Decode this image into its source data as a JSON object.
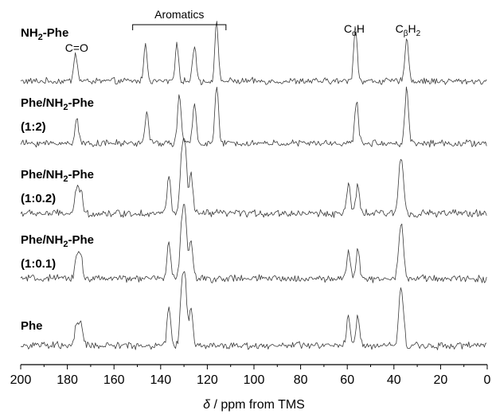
{
  "chart_data": {
    "type": "line",
    "title": "",
    "xlabel": "δ / ppm from TMS",
    "ylabel": "",
    "xlim": [
      200,
      0
    ],
    "x_reversed": true,
    "grid": false,
    "x_ticks": [
      "200",
      "180",
      "160",
      "140",
      "120",
      "100",
      "80",
      "60",
      "40",
      "20",
      "0"
    ],
    "region_label": {
      "text": "Aromatics",
      "from_ppm": 152,
      "to_ppm": 112
    },
    "peak_labels": [
      {
        "text": "C=O",
        "ppm": 176,
        "spectrum": "NH2-Phe"
      },
      {
        "main": "C",
        "sub": "α",
        "tail": "H",
        "ppm": 57,
        "spectrum": "NH2-Phe"
      },
      {
        "main": "C",
        "sub": "β",
        "tail": "H",
        "sub2": "2",
        "ppm": 34,
        "spectrum": "NH2-Phe"
      }
    ],
    "series": [
      {
        "name": "NH2-Phe",
        "label_lines": [
          [
            "NH",
            "2",
            "-Phe"
          ]
        ],
        "peaks": [
          {
            "ppm": 176.5,
            "height": 0.5
          },
          {
            "ppm": 146.5,
            "height": 0.62
          },
          {
            "ppm": 133.0,
            "height": 0.62
          },
          {
            "ppm": 125.5,
            "height": 0.65
          },
          {
            "ppm": 116.0,
            "height": 1.0
          },
          {
            "ppm": 56.5,
            "height": 0.98
          },
          {
            "ppm": 34.5,
            "height": 0.8
          }
        ]
      },
      {
        "name": "Phe/NH2-Phe (1:2)",
        "label_lines": [
          [
            "Phe/NH",
            "2",
            "-Phe"
          ],
          [
            "(1:2)"
          ]
        ],
        "peaks": [
          {
            "ppm": 176.0,
            "height": 0.45
          },
          {
            "ppm": 146.0,
            "height": 0.55
          },
          {
            "ppm": 132.0,
            "height": 0.85
          },
          {
            "ppm": 125.5,
            "height": 0.7
          },
          {
            "ppm": 116.0,
            "height": 1.0
          },
          {
            "ppm": 56.0,
            "height": 0.75
          },
          {
            "ppm": 34.5,
            "height": 1.0
          }
        ]
      },
      {
        "name": "Phe/NH2-Phe (1:0.2)",
        "label_lines": [
          [
            "Phe/NH",
            "2",
            "-Phe"
          ],
          [
            "(1:0.2)"
          ]
        ],
        "peaks": [
          {
            "ppm": 176.0,
            "height": 0.38
          },
          {
            "ppm": 174.2,
            "height": 0.36
          },
          {
            "ppm": 136.5,
            "height": 0.6
          },
          {
            "ppm": 131.0,
            "height": 0.85
          },
          {
            "ppm": 129.5,
            "height": 1.0
          },
          {
            "ppm": 127.0,
            "height": 0.62
          },
          {
            "ppm": 59.5,
            "height": 0.45
          },
          {
            "ppm": 55.5,
            "height": 0.45
          },
          {
            "ppm": 37.5,
            "height": 0.62
          },
          {
            "ppm": 36.3,
            "height": 0.58
          }
        ]
      },
      {
        "name": "Phe/NH2-Phe (1:0.1)",
        "label_lines": [
          [
            "Phe/NH",
            "2",
            "-Phe"
          ],
          [
            "(1:0.1)"
          ]
        ],
        "peaks": [
          {
            "ppm": 176.0,
            "height": 0.4
          },
          {
            "ppm": 174.2,
            "height": 0.37
          },
          {
            "ppm": 136.5,
            "height": 0.62
          },
          {
            "ppm": 131.0,
            "height": 0.85
          },
          {
            "ppm": 129.5,
            "height": 1.0
          },
          {
            "ppm": 127.0,
            "height": 0.62
          },
          {
            "ppm": 59.5,
            "height": 0.45
          },
          {
            "ppm": 55.5,
            "height": 0.45
          },
          {
            "ppm": 37.5,
            "height": 0.62
          },
          {
            "ppm": 36.3,
            "height": 0.58
          }
        ]
      },
      {
        "name": "Phe",
        "label_lines": [
          [
            "Phe"
          ]
        ],
        "peaks": [
          {
            "ppm": 176.0,
            "height": 0.35
          },
          {
            "ppm": 174.2,
            "height": 0.33
          },
          {
            "ppm": 136.5,
            "height": 0.62
          },
          {
            "ppm": 131.0,
            "height": 0.85
          },
          {
            "ppm": 129.5,
            "height": 1.0
          },
          {
            "ppm": 127.0,
            "height": 0.62
          },
          {
            "ppm": 59.5,
            "height": 0.45
          },
          {
            "ppm": 55.5,
            "height": 0.45
          },
          {
            "ppm": 37.5,
            "height": 0.62
          },
          {
            "ppm": 36.3,
            "height": 0.58
          }
        ]
      }
    ]
  }
}
